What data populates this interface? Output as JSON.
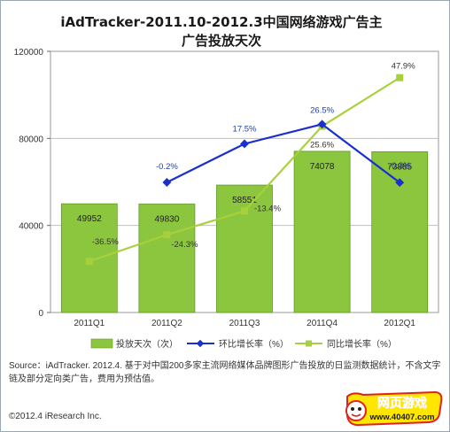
{
  "title_line1": "iAdTracker-2011.10-2012.3中国网络游戏广告主",
  "title_line2": "广告投放天次",
  "source": "Source：iAdTracker. 2012.4. 基于对中国200多家主流网络媒体品牌图形广告投放的日监测数据统计，不含文字链及部分定向类广告，费用为预估值。",
  "copyright": "©2012.4 iResearch Inc.",
  "logo": {
    "text1": "网页游戏",
    "text2": "www.40407.com"
  },
  "colors": {
    "bar": "#8cc63f",
    "blue_line": "#1a2fd0",
    "green_line": "#a8d03c",
    "grid": "#bfbfbf"
  },
  "chart_data": {
    "type": "bar",
    "title": "iAdTracker-2011.10-2012.3中国网络游戏广告主广告投放天次",
    "categories": [
      "2011Q1",
      "2011Q2",
      "2011Q3",
      "2011Q4",
      "2012Q1"
    ],
    "ylim": [
      0,
      120000
    ],
    "yticks": [
      0,
      40000,
      80000,
      120000
    ],
    "grid": true,
    "legend_position": "bottom",
    "series": [
      {
        "name": "投放天次（次）",
        "kind": "bar",
        "values": [
          49952,
          49830,
          58551,
          74078,
          73885
        ],
        "labels": [
          "49952",
          "49830",
          "58551",
          "74078",
          "73885"
        ]
      },
      {
        "name": "环比增长率（%）",
        "kind": "line",
        "values": [
          null,
          -0.2,
          17.5,
          26.5,
          -0.3
        ],
        "labels": [
          null,
          "-0.2%",
          "17.5%",
          "26.5%",
          "-0.3%"
        ]
      },
      {
        "name": "同比增长率（%）",
        "kind": "line",
        "values": [
          -36.5,
          -24.3,
          -13.4,
          25.6,
          47.9
        ],
        "labels": [
          "-36.5%",
          "-24.3%",
          "-13.4%",
          "25.6%",
          "47.9%"
        ]
      }
    ]
  }
}
